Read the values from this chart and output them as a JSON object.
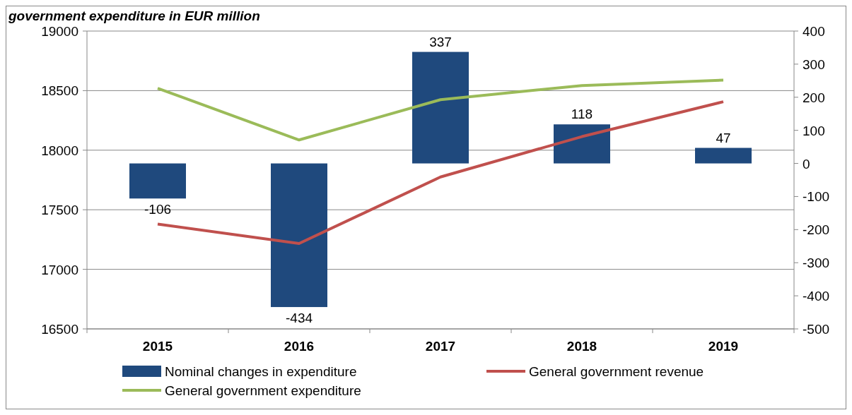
{
  "chart_data": {
    "type": "bar",
    "title": "government expenditure in EUR million",
    "categories": [
      "2015",
      "2016",
      "2017",
      "2018",
      "2019"
    ],
    "series": [
      {
        "name": "Nominal changes in expenditure",
        "axis": "y2",
        "color": "#1f497d",
        "values": [
          -106,
          -434,
          337,
          118,
          47
        ],
        "value_labels": [
          "-106",
          "-434",
          "337",
          "118",
          "47"
        ]
      },
      {
        "name": "General government revenue",
        "type": "line",
        "color": "#c0504d",
        "values": [
          17380,
          17217,
          17775,
          18114,
          18407
        ]
      },
      {
        "name": "General government expenditure",
        "type": "line",
        "color": "#9bbb59",
        "values": [
          18520,
          18086,
          18424,
          18543,
          18588
        ]
      }
    ],
    "ylim": [
      16500,
      19000
    ],
    "yticks": [
      16500,
      17000,
      17500,
      18000,
      18500,
      19000
    ],
    "y2lim": [
      -500,
      400
    ],
    "y2ticks": [
      -500,
      -400,
      -300,
      -200,
      -100,
      0,
      100,
      200,
      300,
      400
    ],
    "grid": "y",
    "legend": "bottom",
    "marker": "none"
  }
}
